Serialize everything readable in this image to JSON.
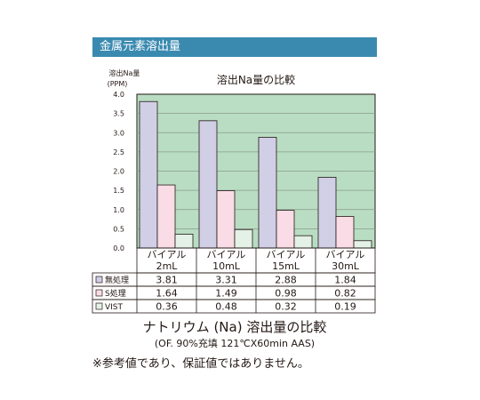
{
  "header": {
    "title": "金属元素溶出量"
  },
  "caption": {
    "main": "ナトリウム (Na) 溶出量の比較",
    "sub": "(OF. 90%充填 121℃X60min AAS)"
  },
  "note": "※参考値であり、保証値ではありません。",
  "colors": {
    "header_bg": "#3a8ab0",
    "plot_bg": "#b9ddc2",
    "series": [
      "#d0cfe6",
      "#f9dce6",
      "#e3f1e6"
    ]
  },
  "chart_data": {
    "type": "bar",
    "title": "溶出Na量の比較",
    "ylabel_lines": [
      "溶出Na量",
      "(PPM)"
    ],
    "ylim": [
      0,
      4.0
    ],
    "yticks": [
      "0.0",
      "0.5",
      "1.0",
      "1.5",
      "2.0",
      "2.5",
      "3.0",
      "3.5",
      "4.0"
    ],
    "grid": true,
    "categories": [
      {
        "line1": "バイアル",
        "line2": "2mL"
      },
      {
        "line1": "バイアル",
        "line2": "10mL"
      },
      {
        "line1": "バイアル",
        "line2": "15mL"
      },
      {
        "line1": "バイアル",
        "line2": "30mL"
      }
    ],
    "series": [
      {
        "name": "無処理",
        "values": [
          3.81,
          3.31,
          2.88,
          1.84
        ],
        "labels": [
          "3.81",
          "3.31",
          "2.88",
          "1.84"
        ]
      },
      {
        "name": "S処理",
        "values": [
          1.64,
          1.49,
          0.98,
          0.82
        ],
        "labels": [
          "1.64",
          "1.49",
          "0.98",
          "0.82"
        ]
      },
      {
        "name": "VIST",
        "values": [
          0.36,
          0.48,
          0.32,
          0.19
        ],
        "labels": [
          "0.36",
          "0.48",
          "0.32",
          "0.19"
        ]
      }
    ]
  }
}
